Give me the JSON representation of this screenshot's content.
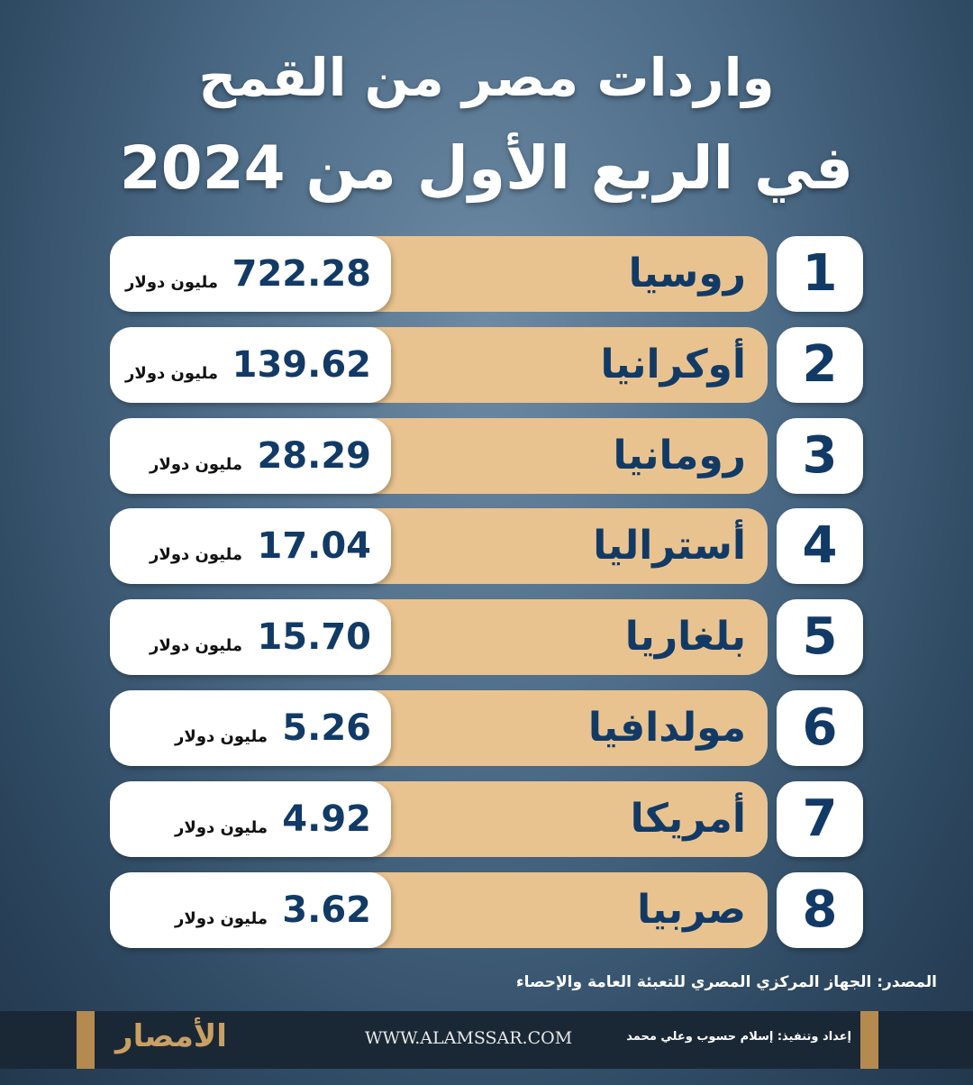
{
  "header": {
    "title_line1": "واردات مصر من القمح",
    "title_line2": "في الربع الأول من 2024"
  },
  "unit": "مليون دولار",
  "rows": [
    {
      "rank": "1",
      "country": "روسيا",
      "value": "722.28"
    },
    {
      "rank": "2",
      "country": "أوكرانيا",
      "value": "139.62"
    },
    {
      "rank": "3",
      "country": "رومانيا",
      "value": "28.29"
    },
    {
      "rank": "4",
      "country": "أستراليا",
      "value": "17.04"
    },
    {
      "rank": "5",
      "country": "بلغاريا",
      "value": "15.70"
    },
    {
      "rank": "6",
      "country": "مولدافيا",
      "value": "5.26"
    },
    {
      "rank": "7",
      "country": "أمريكا",
      "value": "4.92"
    },
    {
      "rank": "8",
      "country": "صربيا",
      "value": "3.62"
    }
  ],
  "source": "المصدر: الجهاز المركزي المصري للتعبئة العامة والإحصاء",
  "footer": {
    "logo": "الأمصار",
    "website": "WWW.ALAMSSAR.COM",
    "credit": "إعداد وتنفيذ: إسلام حسوب وعلي محمد"
  }
}
